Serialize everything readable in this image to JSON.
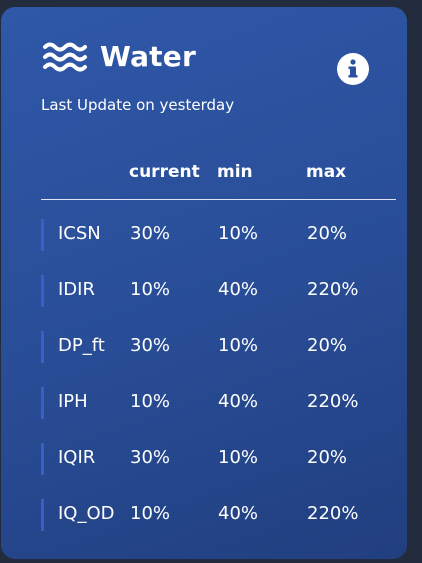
{
  "card": {
    "title": "Water",
    "subtitle": "Last Update on yesterday",
    "icon": "water-waves-icon",
    "info_icon": "info-icon"
  },
  "table": {
    "headers": {
      "current": "current",
      "min": "min",
      "max": "max"
    },
    "rows": [
      {
        "name": "ICSN",
        "current": "30%",
        "min": "10%",
        "max": "20%"
      },
      {
        "name": "IDIR",
        "current": "10%",
        "min": "40%",
        "max": "220%"
      },
      {
        "name": "DP_ft",
        "current": "30%",
        "min": "10%",
        "max": "20%"
      },
      {
        "name": "IPH",
        "current": "10%",
        "min": "40%",
        "max": "220%"
      },
      {
        "name": "IQIR",
        "current": "30%",
        "min": "10%",
        "max": "20%"
      },
      {
        "name": "IQ_OD",
        "current": "10%",
        "min": "40%",
        "max": "220%"
      }
    ]
  },
  "colors": {
    "card_top": "#2f58a8",
    "card_bottom": "#213f80",
    "row_accent": "#3b5fc9",
    "page_background": "#222c3c"
  }
}
